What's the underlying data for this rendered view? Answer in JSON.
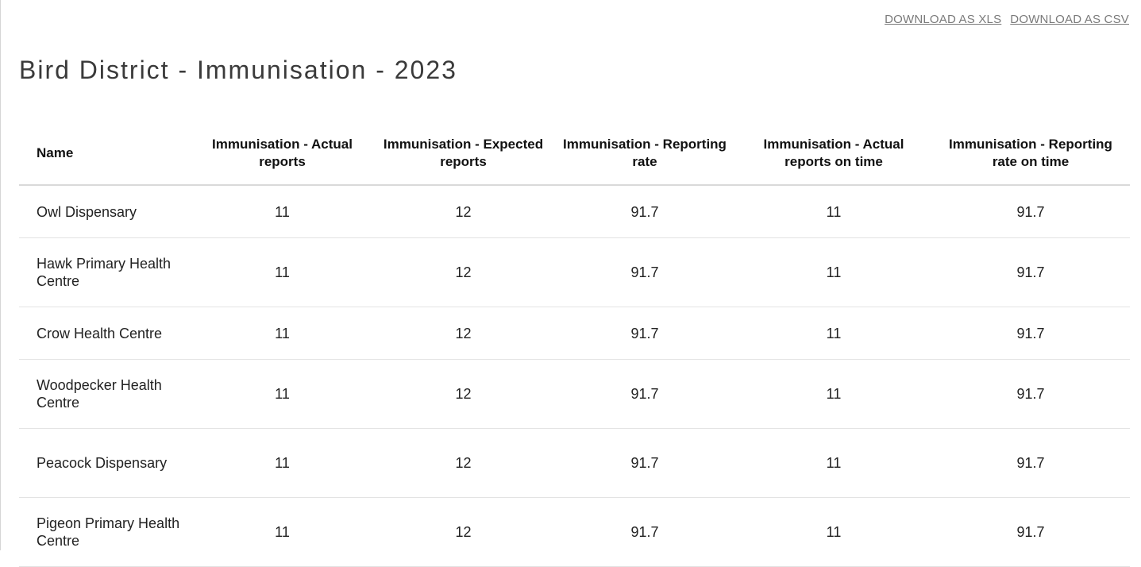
{
  "toolbar": {
    "download_xls": "DOWNLOAD AS XLS",
    "download_csv": "DOWNLOAD AS CSV"
  },
  "report": {
    "title": "Bird District - Immunisation - 2023",
    "columns": [
      "Name",
      "Immunisation - Actual reports",
      "Immunisation - Expected reports",
      "Immunisation - Reporting rate",
      "Immunisation - Actual reports on time",
      "Immunisation - Reporting rate on time"
    ],
    "rows": [
      {
        "name": "Owl Dispensary",
        "actual": "11",
        "expected": "12",
        "rate": "91.7",
        "actual_on_time": "11",
        "rate_on_time": "91.7"
      },
      {
        "name": "Hawk Primary Health Centre",
        "actual": "11",
        "expected": "12",
        "rate": "91.7",
        "actual_on_time": "11",
        "rate_on_time": "91.7"
      },
      {
        "name": "Crow Health Centre",
        "actual": "11",
        "expected": "12",
        "rate": "91.7",
        "actual_on_time": "11",
        "rate_on_time": "91.7"
      },
      {
        "name": "Woodpecker Health Centre",
        "actual": "11",
        "expected": "12",
        "rate": "91.7",
        "actual_on_time": "11",
        "rate_on_time": "91.7"
      },
      {
        "name": "Peacock Dispensary",
        "actual": "11",
        "expected": "12",
        "rate": "91.7",
        "actual_on_time": "11",
        "rate_on_time": "91.7"
      },
      {
        "name": "Pigeon Primary Health Centre",
        "actual": "11",
        "expected": "12",
        "rate": "91.7",
        "actual_on_time": "11",
        "rate_on_time": "91.7"
      }
    ]
  }
}
